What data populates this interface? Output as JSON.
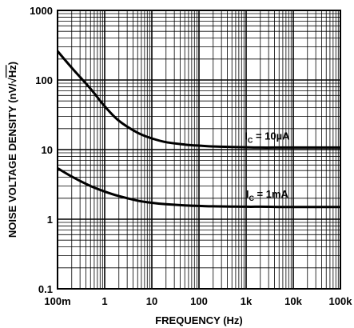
{
  "chart_data": {
    "type": "line",
    "x_scale": "log",
    "y_scale": "log",
    "xlim": [
      0.1,
      100000
    ],
    "ylim": [
      0.1,
      1000
    ],
    "grid": true,
    "xlabel": "FREQUENCY (Hz)",
    "ylabel_prefix": "NOISE VOLTAGE DENSITY (nV/",
    "ylabel_radicand": "Hz",
    "ylabel_suffix": ")",
    "x_ticks": [
      {
        "value": 0.1,
        "label": "100m"
      },
      {
        "value": 1,
        "label": "1"
      },
      {
        "value": 10,
        "label": "10"
      },
      {
        "value": 100,
        "label": "100"
      },
      {
        "value": 1000,
        "label": "1k"
      },
      {
        "value": 10000,
        "label": "10k"
      },
      {
        "value": 100000,
        "label": "100k"
      }
    ],
    "y_ticks": [
      {
        "value": 0.1,
        "label": "0.1"
      },
      {
        "value": 1,
        "label": "1"
      },
      {
        "value": 10,
        "label": "10"
      },
      {
        "value": 100,
        "label": "100"
      },
      {
        "value": 1000,
        "label": "1000"
      }
    ],
    "series": [
      {
        "id": "ic-10ua",
        "label_main": "I",
        "label_sub": "C",
        "label_rest": " = 10µA",
        "label_at": {
          "x": 2800,
          "y": 14
        },
        "x": [
          0.1,
          0.2,
          0.5,
          1,
          2,
          5,
          10,
          20,
          50,
          100,
          200,
          500,
          1000,
          2000,
          5000,
          10000,
          20000,
          50000,
          100000
        ],
        "y": [
          260,
          150,
          75,
          42,
          26,
          17.5,
          14.5,
          12.8,
          11.8,
          11.4,
          11.1,
          10.9,
          10.8,
          10.7,
          10.7,
          10.7,
          10.7,
          10.7,
          10.7
        ]
      },
      {
        "id": "ic-1ma",
        "label_main": "I",
        "label_sub": "C",
        "label_rest": " = 1mA",
        "label_at": {
          "x": 2800,
          "y": 2.05
        },
        "x": [
          0.1,
          0.2,
          0.5,
          1,
          2,
          5,
          10,
          20,
          50,
          100,
          200,
          500,
          1000,
          2000,
          5000,
          10000,
          20000,
          50000,
          100000
        ],
        "y": [
          5.4,
          4.1,
          3.0,
          2.5,
          2.15,
          1.85,
          1.72,
          1.64,
          1.58,
          1.55,
          1.53,
          1.52,
          1.51,
          1.51,
          1.5,
          1.5,
          1.5,
          1.5,
          1.5
        ]
      }
    ]
  }
}
